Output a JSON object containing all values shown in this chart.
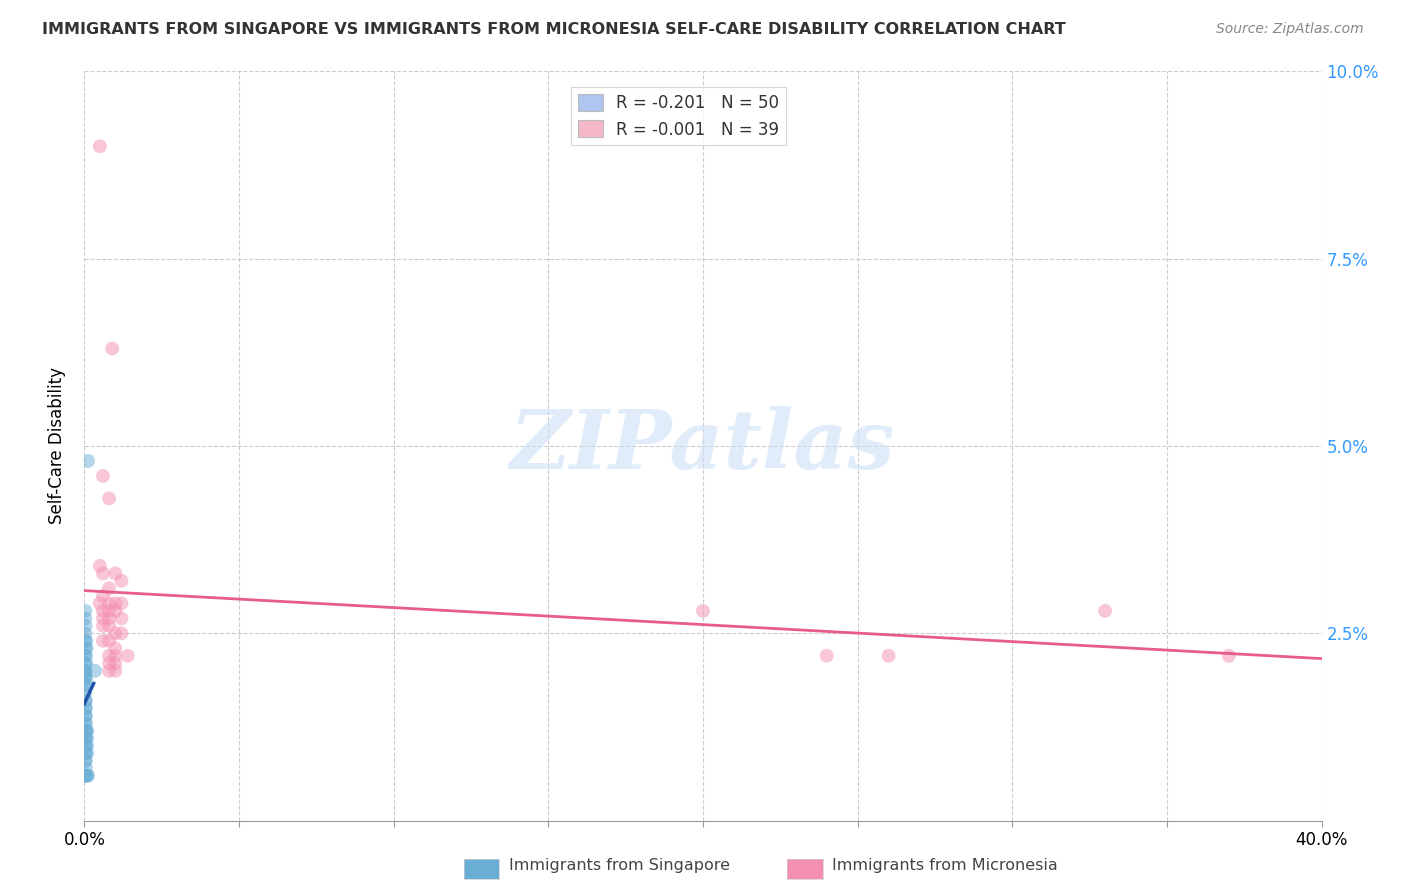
{
  "title": "IMMIGRANTS FROM SINGAPORE VS IMMIGRANTS FROM MICRONESIA SELF-CARE DISABILITY CORRELATION CHART",
  "source": "Source: ZipAtlas.com",
  "ylabel": "Self-Care Disability",
  "xlim": [
    0,
    0.4
  ],
  "ylim": [
    0,
    0.1
  ],
  "xticks": [
    0.0,
    0.05,
    0.1,
    0.15,
    0.2,
    0.25,
    0.3,
    0.35,
    0.4
  ],
  "xtick_labels_show": [
    "0.0%",
    "",
    "",
    "",
    "",
    "",
    "",
    "",
    "40.0%"
  ],
  "yticks": [
    0.025,
    0.05,
    0.075,
    0.1
  ],
  "ytick_labels": [
    "2.5%",
    "5.0%",
    "7.5%",
    "10.0%"
  ],
  "legend_entries": [
    {
      "label": "R = -0.201   N = 50",
      "color": "#aec6f0"
    },
    {
      "label": "R = -0.001   N = 39",
      "color": "#f4b8c8"
    }
  ],
  "legend_bottom": [
    "Immigrants from Singapore",
    "Immigrants from Micronesia"
  ],
  "singapore_color": "#6aaed6",
  "micronesia_color": "#f48fb1",
  "singapore_line_color": "#2255aa",
  "micronesia_line_color": "#e85c8a",
  "singapore_points": [
    [
      0.0003,
      0.028
    ],
    [
      0.0003,
      0.027
    ],
    [
      0.0004,
      0.026
    ],
    [
      0.0003,
      0.025
    ],
    [
      0.0003,
      0.024
    ],
    [
      0.0006,
      0.024
    ],
    [
      0.0004,
      0.023
    ],
    [
      0.0007,
      0.023
    ],
    [
      0.0003,
      0.022
    ],
    [
      0.0005,
      0.022
    ],
    [
      0.0003,
      0.021
    ],
    [
      0.0006,
      0.021
    ],
    [
      0.0003,
      0.02
    ],
    [
      0.0004,
      0.02
    ],
    [
      0.0003,
      0.0195
    ],
    [
      0.0003,
      0.019
    ],
    [
      0.0005,
      0.019
    ],
    [
      0.0003,
      0.018
    ],
    [
      0.0005,
      0.018
    ],
    [
      0.0003,
      0.017
    ],
    [
      0.0003,
      0.016
    ],
    [
      0.0005,
      0.016
    ],
    [
      0.0003,
      0.015
    ],
    [
      0.0005,
      0.015
    ],
    [
      0.0003,
      0.014
    ],
    [
      0.0005,
      0.014
    ],
    [
      0.0003,
      0.013
    ],
    [
      0.0005,
      0.013
    ],
    [
      0.0003,
      0.012
    ],
    [
      0.0005,
      0.012
    ],
    [
      0.0007,
      0.012
    ],
    [
      0.0009,
      0.012
    ],
    [
      0.0003,
      0.011
    ],
    [
      0.0005,
      0.011
    ],
    [
      0.0009,
      0.011
    ],
    [
      0.0003,
      0.01
    ],
    [
      0.0005,
      0.01
    ],
    [
      0.0009,
      0.01
    ],
    [
      0.0003,
      0.009
    ],
    [
      0.0005,
      0.009
    ],
    [
      0.0009,
      0.009
    ],
    [
      0.0003,
      0.008
    ],
    [
      0.0005,
      0.008
    ],
    [
      0.0005,
      0.007
    ],
    [
      0.0003,
      0.006
    ],
    [
      0.0005,
      0.006
    ],
    [
      0.0009,
      0.006
    ],
    [
      0.0012,
      0.006
    ],
    [
      0.0012,
      0.048
    ],
    [
      0.0035,
      0.02
    ]
  ],
  "micronesia_points": [
    [
      0.005,
      0.09
    ],
    [
      0.009,
      0.063
    ],
    [
      0.006,
      0.046
    ],
    [
      0.008,
      0.043
    ],
    [
      0.005,
      0.034
    ],
    [
      0.006,
      0.033
    ],
    [
      0.01,
      0.033
    ],
    [
      0.012,
      0.032
    ],
    [
      0.008,
      0.031
    ],
    [
      0.006,
      0.03
    ],
    [
      0.005,
      0.029
    ],
    [
      0.008,
      0.029
    ],
    [
      0.01,
      0.029
    ],
    [
      0.012,
      0.029
    ],
    [
      0.006,
      0.028
    ],
    [
      0.008,
      0.028
    ],
    [
      0.01,
      0.028
    ],
    [
      0.006,
      0.027
    ],
    [
      0.008,
      0.027
    ],
    [
      0.012,
      0.027
    ],
    [
      0.006,
      0.026
    ],
    [
      0.008,
      0.026
    ],
    [
      0.01,
      0.025
    ],
    [
      0.012,
      0.025
    ],
    [
      0.006,
      0.024
    ],
    [
      0.008,
      0.024
    ],
    [
      0.01,
      0.023
    ],
    [
      0.008,
      0.022
    ],
    [
      0.01,
      0.022
    ],
    [
      0.014,
      0.022
    ],
    [
      0.008,
      0.021
    ],
    [
      0.01,
      0.021
    ],
    [
      0.008,
      0.02
    ],
    [
      0.01,
      0.02
    ],
    [
      0.2,
      0.028
    ],
    [
      0.33,
      0.028
    ],
    [
      0.26,
      0.022
    ],
    [
      0.37,
      0.022
    ],
    [
      0.24,
      0.022
    ]
  ],
  "background_color": "#ffffff",
  "watermark_text": "ZIPatlas",
  "marker_size": 100
}
